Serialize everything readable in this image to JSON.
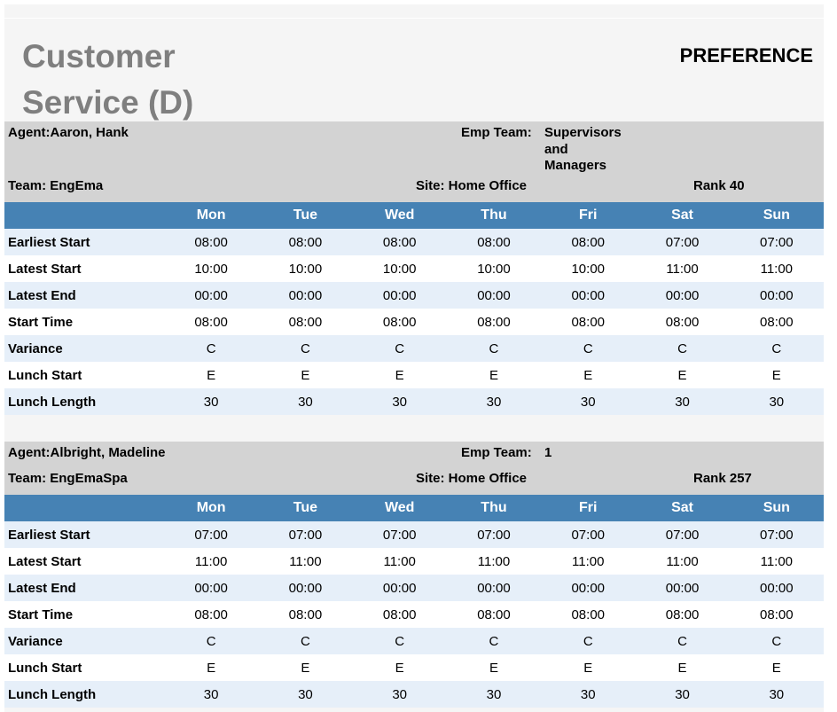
{
  "report": {
    "title": "Customer Service (D)",
    "type": "PREFERENCE"
  },
  "days": [
    "Mon",
    "Tue",
    "Wed",
    "Thu",
    "Fri",
    "Sat",
    "Sun"
  ],
  "agents": [
    {
      "agent": "Agent:Aaron, Hank",
      "emp_team_label": "Emp Team:",
      "emp_team": "Supervisors\nand\nManagers",
      "team": "Team: EngEma",
      "site": "Site: Home Office",
      "rank": "Rank 40",
      "rows": [
        {
          "label": "Earliest Start",
          "values": [
            "08:00",
            "08:00",
            "08:00",
            "08:00",
            "08:00",
            "07:00",
            "07:00"
          ]
        },
        {
          "label": "Latest Start",
          "values": [
            "10:00",
            "10:00",
            "10:00",
            "10:00",
            "10:00",
            "11:00",
            "11:00"
          ]
        },
        {
          "label": "Latest End",
          "values": [
            "00:00",
            "00:00",
            "00:00",
            "00:00",
            "00:00",
            "00:00",
            "00:00"
          ]
        },
        {
          "label": "Start Time",
          "values": [
            "08:00",
            "08:00",
            "08:00",
            "08:00",
            "08:00",
            "08:00",
            "08:00"
          ]
        },
        {
          "label": "Variance",
          "values": [
            "C",
            "C",
            "C",
            "C",
            "C",
            "C",
            "C"
          ]
        },
        {
          "label": "Lunch Start",
          "values": [
            "E",
            "E",
            "E",
            "E",
            "E",
            "E",
            "E"
          ]
        },
        {
          "label": "Lunch Length",
          "values": [
            "30",
            "30",
            "30",
            "30",
            "30",
            "30",
            "30"
          ]
        }
      ]
    },
    {
      "agent": "Agent:Albright, Madeline",
      "emp_team_label": "Emp Team:",
      "emp_team": "1",
      "team": "Team: EngEmaSpa",
      "site": "Site: Home Office",
      "rank": "Rank 257",
      "rows": [
        {
          "label": "Earliest Start",
          "values": [
            "07:00",
            "07:00",
            "07:00",
            "07:00",
            "07:00",
            "07:00",
            "07:00"
          ]
        },
        {
          "label": "Latest Start",
          "values": [
            "11:00",
            "11:00",
            "11:00",
            "11:00",
            "11:00",
            "11:00",
            "11:00"
          ]
        },
        {
          "label": "Latest End",
          "values": [
            "00:00",
            "00:00",
            "00:00",
            "00:00",
            "00:00",
            "00:00",
            "00:00"
          ]
        },
        {
          "label": "Start Time",
          "values": [
            "08:00",
            "08:00",
            "08:00",
            "08:00",
            "08:00",
            "08:00",
            "08:00"
          ]
        },
        {
          "label": "Variance",
          "values": [
            "C",
            "C",
            "C",
            "C",
            "C",
            "C",
            "C"
          ]
        },
        {
          "label": "Lunch Start",
          "values": [
            "E",
            "E",
            "E",
            "E",
            "E",
            "E",
            "E"
          ]
        },
        {
          "label": "Lunch Length",
          "values": [
            "30",
            "30",
            "30",
            "30",
            "30",
            "30",
            "30"
          ]
        }
      ]
    }
  ]
}
